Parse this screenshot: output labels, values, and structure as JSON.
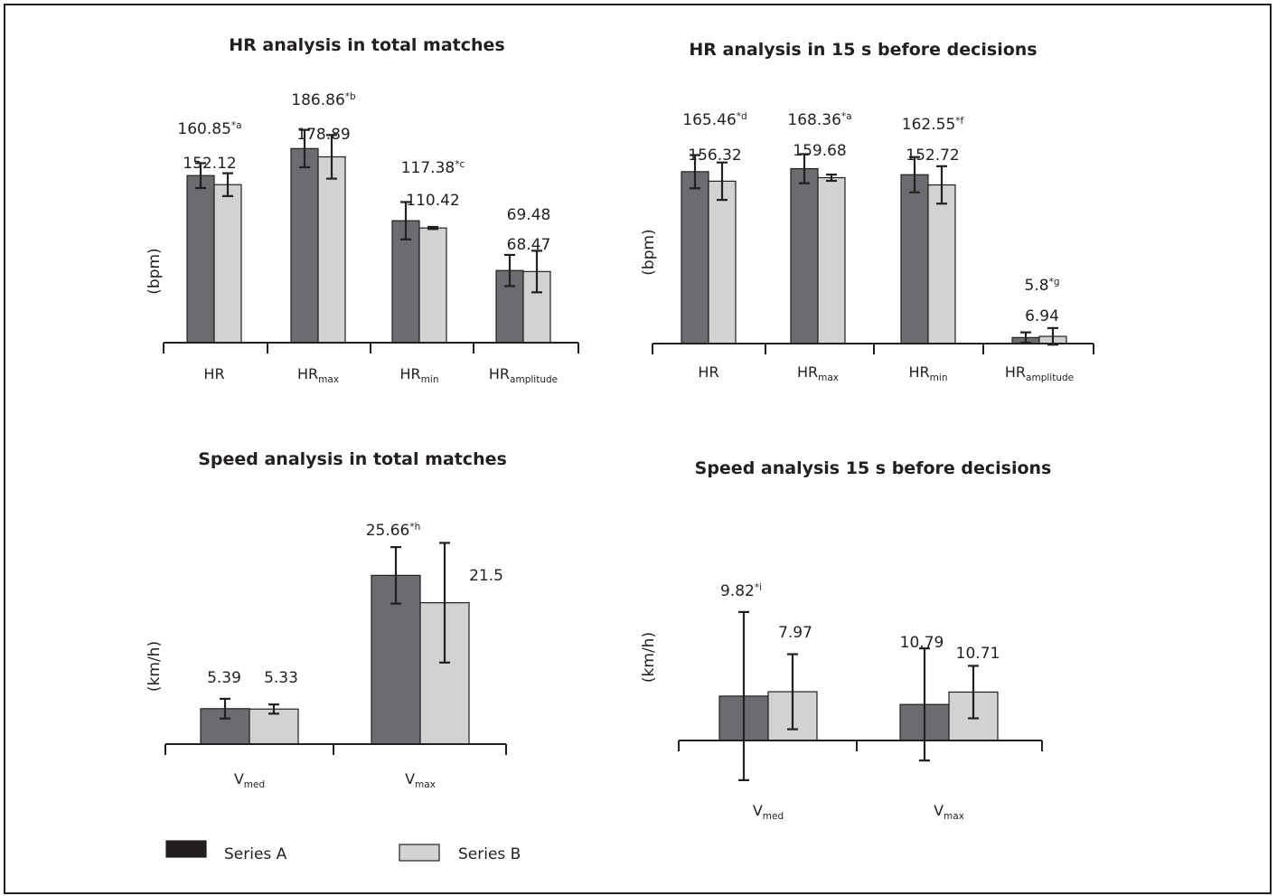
{
  "colors": {
    "series_a": "#6b6b70",
    "series_b": "#d2d2d4",
    "ink": "#231f20",
    "frame": "#231f20"
  },
  "legend": {
    "items": [
      {
        "label": "Series A",
        "color": "#231f20"
      },
      {
        "label": "Series B",
        "color": "#d2d2d4"
      }
    ]
  },
  "chart_data": [
    {
      "type": "bar",
      "title": "HR analysis in total matches",
      "ylabel": "(bpm)",
      "categories": [
        {
          "main": "HR",
          "sub": ""
        },
        {
          "main": "HR",
          "sub": "max"
        },
        {
          "main": "HR",
          "sub": "min"
        },
        {
          "main": "HR",
          "sub": "amplitude"
        }
      ],
      "ylim": [
        0,
        235
      ],
      "series": [
        {
          "values": [
            160.85,
            186.86,
            117.38,
            69.48
          ],
          "errors": [
            12,
            18,
            18,
            15
          ]
        },
        {
          "values": [
            152.12,
            178.89,
            110.42,
            68.47
          ],
          "errors": [
            11,
            21,
            1,
            20
          ]
        }
      ],
      "labels": [
        {
          "value": "160.85",
          "sup": "*a"
        },
        {
          "value": "152.12",
          "sup": ""
        },
        {
          "value": "186.86",
          "sup": "*b"
        },
        {
          "value": "178.89",
          "sup": ""
        },
        {
          "value": "117.38",
          "sup": "*c"
        },
        {
          "value": "110.42",
          "sup": ""
        },
        {
          "value": "69.48",
          "sup": ""
        },
        {
          "value": "68.47",
          "sup": ""
        }
      ]
    },
    {
      "type": "bar",
      "title": "HR analysis in 15 s before decisions",
      "ylabel": "(bpm)",
      "categories": [
        {
          "main": "HR",
          "sub": ""
        },
        {
          "main": "HR",
          "sub": "max"
        },
        {
          "main": "HR",
          "sub": "min"
        },
        {
          "main": "HR",
          "sub": "amplitude"
        }
      ],
      "ylim": [
        0,
        235
      ],
      "series": [
        {
          "values": [
            165.46,
            168.36,
            162.55,
            5.8
          ],
          "errors": [
            16,
            14,
            17,
            5
          ]
        },
        {
          "values": [
            156.32,
            159.68,
            152.72,
            6.94
          ],
          "errors": [
            18,
            3,
            18,
            8
          ]
        }
      ],
      "labels": [
        {
          "value": "165.46",
          "sup": "*d"
        },
        {
          "value": "156.32",
          "sup": ""
        },
        {
          "value": "168.36",
          "sup": "*a"
        },
        {
          "value": "159.68",
          "sup": ""
        },
        {
          "value": "162.55",
          "sup": "*f"
        },
        {
          "value": "152.72",
          "sup": ""
        },
        {
          "value": "5.8",
          "sup": "*g"
        },
        {
          "value": "6.94",
          "sup": ""
        }
      ]
    },
    {
      "type": "bar",
      "title": "Speed analysis in total matches",
      "ylabel": "(km/h)",
      "categories": [
        {
          "main": "V",
          "sub": "med"
        },
        {
          "main": "V",
          "sub": "max"
        }
      ],
      "ylim": [
        0,
        33
      ],
      "series": [
        {
          "values": [
            5.39,
            25.66
          ],
          "errors": [
            1.5,
            4.3
          ]
        },
        {
          "values": [
            5.33,
            21.5
          ],
          "errors": [
            0.7,
            9.1
          ]
        }
      ],
      "labels": [
        {
          "value": "5.39",
          "sup": ""
        },
        {
          "value": "5.33",
          "sup": ""
        },
        {
          "value": "25.66",
          "sup": "*h"
        },
        {
          "value": "21.5",
          "sup": ""
        }
      ]
    },
    {
      "type": "bar",
      "title": "Speed analysis 15 s before decisions",
      "ylabel": "(km/h)",
      "categories": [
        {
          "main": "V",
          "sub": "med"
        },
        {
          "main": "V",
          "sub": "max"
        }
      ],
      "ylim": [
        0,
        35
      ],
      "series": [
        {
          "values": [
            9.82,
            7.97
          ],
          "errors": [
            18.6,
            12.4
          ]
        },
        {
          "values": [
            10.79,
            10.71
          ],
          "errors": [
            8.3,
            5.8
          ]
        }
      ],
      "labels": [
        {
          "value": "9.82",
          "sup": "*i"
        },
        {
          "value": "7.97",
          "sup": ""
        },
        {
          "value": "10.79",
          "sup": ""
        },
        {
          "value": "10.71",
          "sup": ""
        }
      ]
    }
  ]
}
